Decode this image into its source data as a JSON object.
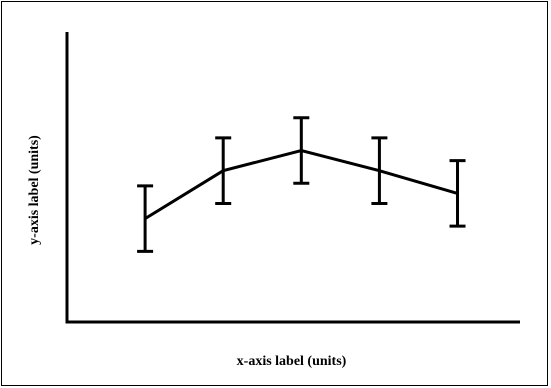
{
  "chart_data": {
    "type": "line",
    "title": "",
    "xlabel": "x-axis label (units)",
    "ylabel": "y-axis label (units)",
    "x": [
      1,
      2,
      3,
      4,
      5
    ],
    "series": [
      {
        "values": [
          2.6,
          4.5,
          5.3,
          4.5,
          3.6
        ],
        "error": [
          1.3,
          1.3,
          1.3,
          1.3,
          1.3
        ]
      }
    ],
    "xlim": [
      0,
      5.8
    ],
    "ylim": [
      -1.5,
      10
    ],
    "grid": false,
    "line_color": "#000000"
  }
}
